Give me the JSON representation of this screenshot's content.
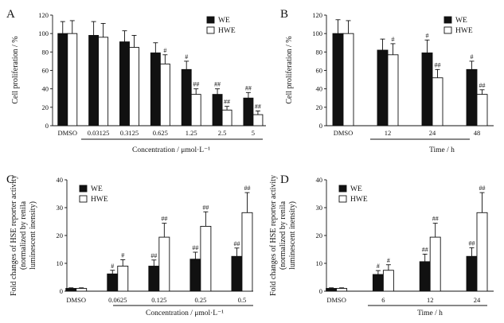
{
  "chart_data": [
    {
      "panel": "A",
      "type": "bar",
      "ylabel": "Cell proliferation / %",
      "xlabel": "Concentration / μmol·L⁻¹",
      "ylim": [
        0,
        120
      ],
      "yticks": [
        0,
        20,
        40,
        60,
        80,
        100,
        120
      ],
      "categories": [
        "DMSO",
        "0.03125",
        "0.3125",
        "0.625",
        "1.25",
        "2.5",
        "5"
      ],
      "legend_position": "top-right",
      "series": [
        {
          "name": "WE",
          "color": "#111111",
          "values": [
            100,
            98,
            91,
            79,
            61,
            34,
            30
          ],
          "errors": [
            13,
            15,
            12,
            11,
            9,
            6,
            6
          ],
          "sig": [
            "",
            "",
            "",
            "",
            "#",
            "##",
            "##"
          ]
        },
        {
          "name": "HWE",
          "color": "#ffffff",
          "values": [
            100,
            96,
            85,
            67,
            34,
            17,
            12
          ],
          "errors": [
            14,
            15,
            13,
            10,
            6,
            4,
            4
          ],
          "sig": [
            "",
            "",
            "",
            "#",
            "##",
            "##",
            "##"
          ]
        }
      ]
    },
    {
      "panel": "B",
      "type": "bar",
      "ylabel": "Cell proliferation / %",
      "xlabel": "Time / h",
      "ylim": [
        0,
        120
      ],
      "yticks": [
        0,
        20,
        40,
        60,
        80,
        100,
        120
      ],
      "categories": [
        "DMSO",
        "12",
        "24",
        "48"
      ],
      "legend_position": "top-right",
      "series": [
        {
          "name": "WE",
          "color": "#111111",
          "values": [
            100,
            82,
            79,
            61
          ],
          "errors": [
            15,
            12,
            14,
            9
          ],
          "sig": [
            "",
            "",
            "#",
            "#"
          ]
        },
        {
          "name": "HWE",
          "color": "#ffffff",
          "values": [
            100,
            77,
            52,
            34
          ],
          "errors": [
            14,
            12,
            9,
            5
          ],
          "sig": [
            "",
            "#",
            "##",
            "##"
          ]
        }
      ]
    },
    {
      "panel": "C",
      "type": "bar",
      "ylabel_lines": [
        "Fold changes of HSE reporter activity",
        "(normalized by renila",
        "luminescent inensity)"
      ],
      "xlabel": "Concentration / μmol·L⁻¹",
      "ylim": [
        0,
        40
      ],
      "yticks": [
        0,
        10,
        20,
        30,
        40
      ],
      "categories": [
        "DMSO",
        "0.0625",
        "0.125",
        "0.25",
        "0.5"
      ],
      "legend_position": "top-left",
      "series": [
        {
          "name": "WE",
          "color": "#111111",
          "values": [
            1.0,
            6.2,
            9.0,
            11.5,
            12.5
          ],
          "errors": [
            0.2,
            1.3,
            2.2,
            2.5,
            3.0
          ],
          "sig": [
            "",
            "#",
            "##",
            "##",
            "##"
          ]
        },
        {
          "name": "HWE",
          "color": "#ffffff",
          "values": [
            1.0,
            9.0,
            19.4,
            23.3,
            28.2
          ],
          "errors": [
            0.2,
            2.3,
            5.0,
            5.2,
            7.2
          ],
          "sig": [
            "",
            "#",
            "##",
            "##",
            "##"
          ]
        }
      ]
    },
    {
      "panel": "D",
      "type": "bar",
      "ylabel_lines": [
        "Fold changes of HSE reporter activity",
        "(normalized by renila",
        "luminescent inensity)"
      ],
      "xlabel": "Time / h",
      "ylim": [
        0,
        40
      ],
      "yticks": [
        0,
        10,
        20,
        30,
        40
      ],
      "categories": [
        "DMSO",
        "6",
        "12",
        "24"
      ],
      "legend_position": "top-left",
      "series": [
        {
          "name": "WE",
          "color": "#111111",
          "values": [
            1.0,
            6.0,
            10.6,
            12.5
          ],
          "errors": [
            0.2,
            1.4,
            2.7,
            3.1
          ],
          "sig": [
            "",
            "#",
            "##",
            "##"
          ]
        },
        {
          "name": "HWE",
          "color": "#ffffff",
          "values": [
            1.0,
            7.5,
            19.4,
            28.2
          ],
          "errors": [
            0.2,
            2.0,
            5.0,
            7.2
          ],
          "sig": [
            "",
            "#",
            "##",
            "##"
          ]
        }
      ]
    }
  ]
}
